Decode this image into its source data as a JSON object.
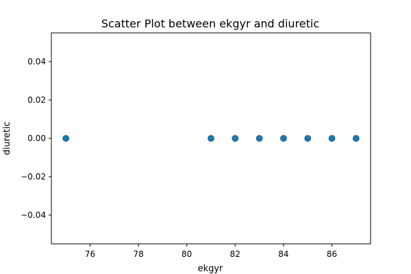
{
  "chart_data": {
    "type": "scatter",
    "title": "Scatter Plot between ekgyr and diuretic",
    "xlabel": "ekgyr",
    "ylabel": "diuretic",
    "xlim": [
      74.4,
      87.6
    ],
    "ylim": [
      -0.055,
      0.055
    ],
    "xticks": [
      76,
      78,
      80,
      82,
      84,
      86
    ],
    "xtick_labels": [
      "76",
      "78",
      "80",
      "82",
      "84",
      "86"
    ],
    "yticks": [
      -0.04,
      -0.02,
      0.0,
      0.02,
      0.04
    ],
    "ytick_labels": [
      "−0.04",
      "−0.02",
      "0.00",
      "0.02",
      "0.04"
    ],
    "grid": false,
    "marker_color": "#1f77b4",
    "marker_edge_color": "#1a5f91",
    "x": [
      75,
      81,
      82,
      83,
      84,
      85,
      86,
      87
    ],
    "y": [
      0,
      0,
      0,
      0,
      0,
      0,
      0,
      0
    ]
  }
}
